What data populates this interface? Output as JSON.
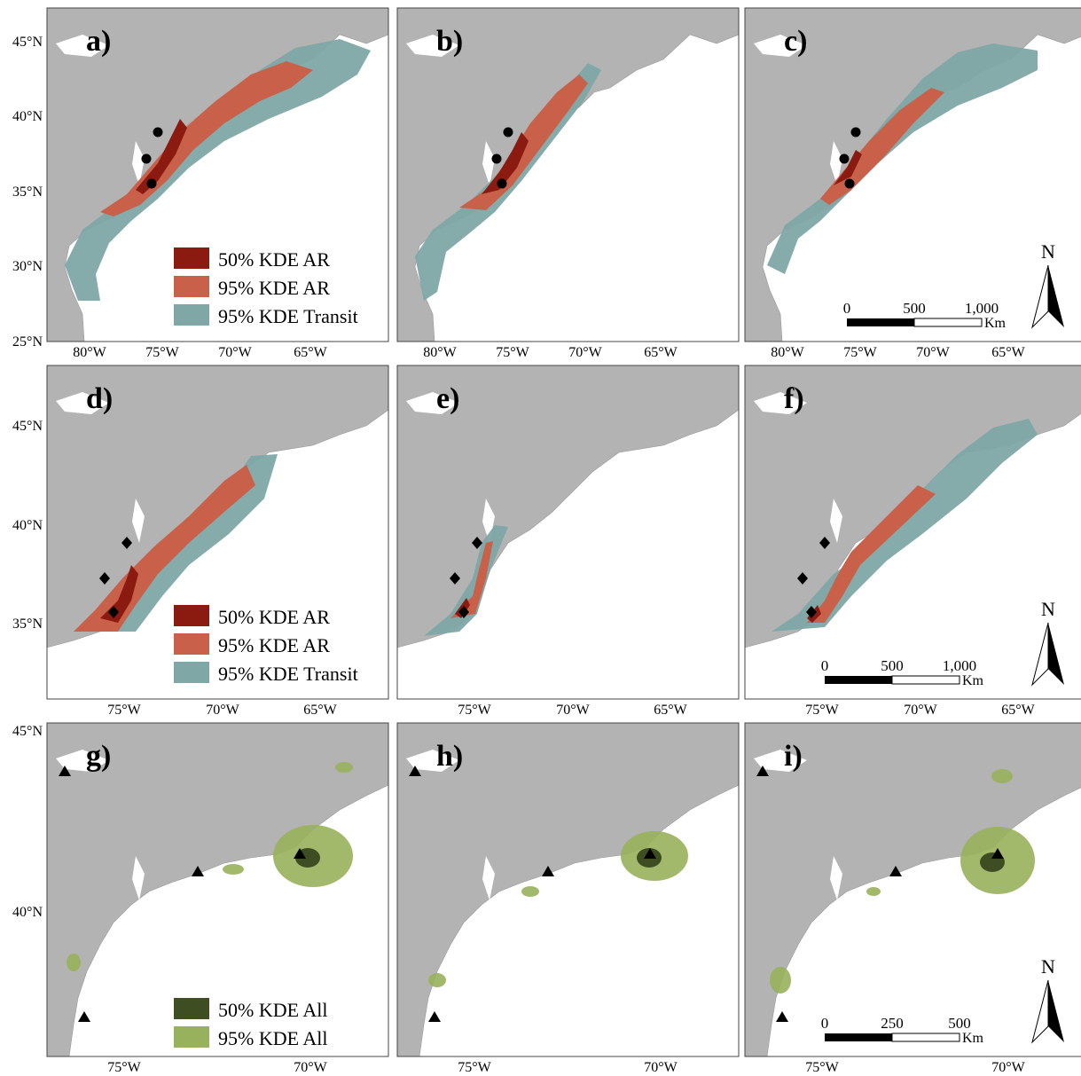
{
  "panels": [
    {
      "id": "a",
      "label": "a)",
      "row": 0,
      "col": 0,
      "markers": "circle",
      "scheme": "transit",
      "legend": "ar",
      "scale": null
    },
    {
      "id": "b",
      "label": "b)",
      "row": 0,
      "col": 1,
      "markers": "circle",
      "scheme": "transit",
      "legend": null,
      "scale": null
    },
    {
      "id": "c",
      "label": "c)",
      "row": 0,
      "col": 2,
      "markers": "circle",
      "scheme": "transit",
      "legend": null,
      "scale": "large"
    },
    {
      "id": "d",
      "label": "d)",
      "row": 1,
      "col": 0,
      "markers": "diamond",
      "scheme": "transit",
      "legend": "ar",
      "scale": null
    },
    {
      "id": "e",
      "label": "e)",
      "row": 1,
      "col": 1,
      "markers": "diamond",
      "scheme": "transit",
      "legend": null,
      "scale": null
    },
    {
      "id": "f",
      "label": "f)",
      "row": 1,
      "col": 2,
      "markers": "diamond",
      "scheme": "transit",
      "legend": null,
      "scale": "large"
    },
    {
      "id": "g",
      "label": "g)",
      "row": 2,
      "col": 0,
      "markers": "triangle",
      "scheme": "all",
      "legend": "all",
      "scale": null
    },
    {
      "id": "h",
      "label": "h)",
      "row": 2,
      "col": 1,
      "markers": "triangle",
      "scheme": "all",
      "legend": null,
      "scale": null
    },
    {
      "id": "i",
      "label": "i)",
      "row": 2,
      "col": 2,
      "markers": "triangle",
      "scheme": "all",
      "legend": null,
      "scale": "small"
    }
  ],
  "axes": {
    "row1_lat": [
      "45°N",
      "40°N",
      "35°N",
      "30°N",
      "25°N"
    ],
    "row1_lon": [
      "80°W",
      "75°W",
      "70°W",
      "65°W"
    ],
    "row2_lat": [
      "45°N",
      "40°N",
      "35°N"
    ],
    "row2_lon": [
      "75°W",
      "70°W",
      "65°W"
    ],
    "row3_lat": [
      "45°N",
      "40°N"
    ],
    "row3_lon": [
      "75°W",
      "70°W"
    ]
  },
  "legends": {
    "ar": [
      "50% KDE AR",
      "95% KDE AR",
      "95% KDE Transit"
    ],
    "all": [
      "50% KDE All",
      "95% KDE All"
    ]
  },
  "scalebars": {
    "large": {
      "ticks": [
        "0",
        "500",
        "1,000"
      ],
      "unit": "Km"
    },
    "small": {
      "ticks": [
        "0",
        "250",
        "500"
      ],
      "unit": "Km"
    }
  },
  "north_label": "N",
  "colors": {
    "land": "#b3b3b3",
    "water": "#ffffff",
    "kde50_ar": "#8b1a10",
    "kde95_ar": "#c9604a",
    "kde95_transit": "#7fa7a6",
    "kde50_all": "#3e4e22",
    "kde95_all": "#98b15c",
    "marker": "#000000"
  }
}
